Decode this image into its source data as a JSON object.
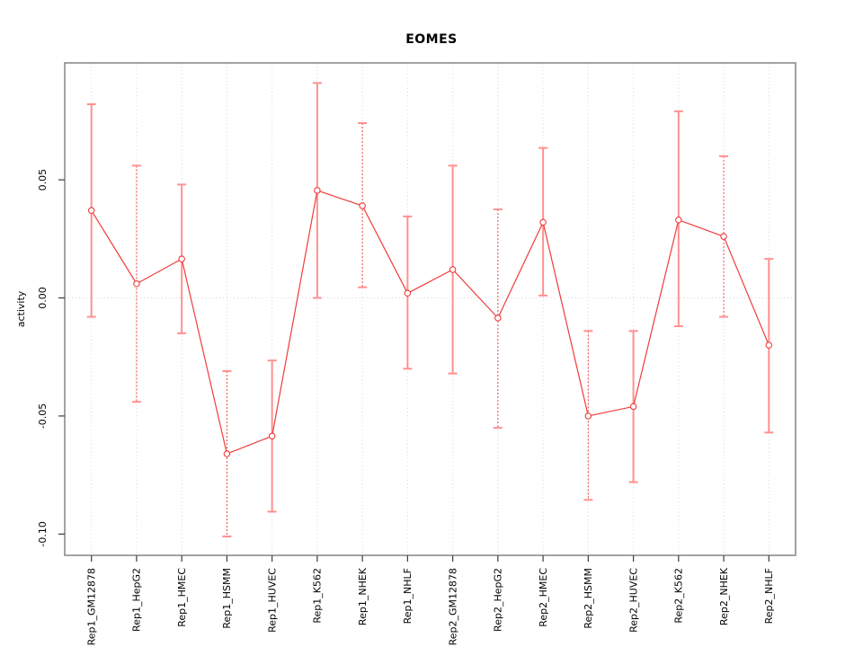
{
  "chart_data": {
    "type": "line",
    "title": "EOMES",
    "xlabel": "",
    "ylabel": "activity",
    "categories": [
      "Rep1_GM12878",
      "Rep1_HepG2",
      "Rep1_HMEC",
      "Rep1_HSMM",
      "Rep1_HUVEC",
      "Rep1_K562",
      "Rep1_NHEK",
      "Rep1_NHLF",
      "Rep2_GM12878",
      "Rep2_HepG2",
      "Rep2_HMEC",
      "Rep2_HSMM",
      "Rep2_HUVEC",
      "Rep2_K562",
      "Rep2_NHEK",
      "Rep2_NHLF"
    ],
    "series": [
      {
        "name": "activity",
        "values": [
          0.037,
          0.006,
          0.0165,
          -0.066,
          -0.0585,
          0.0455,
          0.039,
          0.002,
          0.012,
          -0.0085,
          0.032,
          -0.05,
          -0.046,
          0.033,
          0.026,
          -0.02
        ],
        "error_high": [
          0.082,
          0.056,
          0.048,
          -0.031,
          -0.0265,
          0.091,
          0.074,
          0.0345,
          0.056,
          0.0375,
          0.0635,
          -0.014,
          -0.014,
          0.079,
          0.06,
          0.0165
        ],
        "error_low": [
          -0.008,
          -0.044,
          -0.015,
          -0.101,
          -0.0905,
          0.0,
          0.0045,
          -0.03,
          -0.032,
          -0.055,
          0.001,
          -0.0855,
          -0.078,
          -0.012,
          -0.008,
          -0.057
        ],
        "error_style": [
          "solid",
          "dotted",
          "solid",
          "dotted",
          "solid",
          "solid",
          "dotted",
          "solid",
          "solid",
          "dotted",
          "solid",
          "dotted",
          "solid",
          "solid",
          "dotted",
          "solid"
        ]
      }
    ],
    "yticks": [
      {
        "value": 0.05,
        "label": "0.05"
      },
      {
        "value": 0.0,
        "label": "0.00"
      },
      {
        "value": -0.05,
        "label": "-0.05"
      },
      {
        "value": -0.1,
        "label": "-0.10"
      }
    ],
    "ylim": [
      -0.109,
      0.0995
    ],
    "grid": {
      "vertical_at_categories": true,
      "horizontal_zero_line": true
    },
    "legend_position": "none",
    "marker": "open-circle"
  },
  "colors": {
    "series_line": "#f03b3b",
    "marker_stroke": "#f03b3b",
    "marker_fill": "#ffffff",
    "error_bar_solid": "#ff9090",
    "error_bar_dotted": "#f04545",
    "gridline": "#d9d9d9",
    "plot_border": "#848484",
    "tick": "#3c3c3c",
    "label_text": "#000000",
    "background": "#ffffff"
  }
}
